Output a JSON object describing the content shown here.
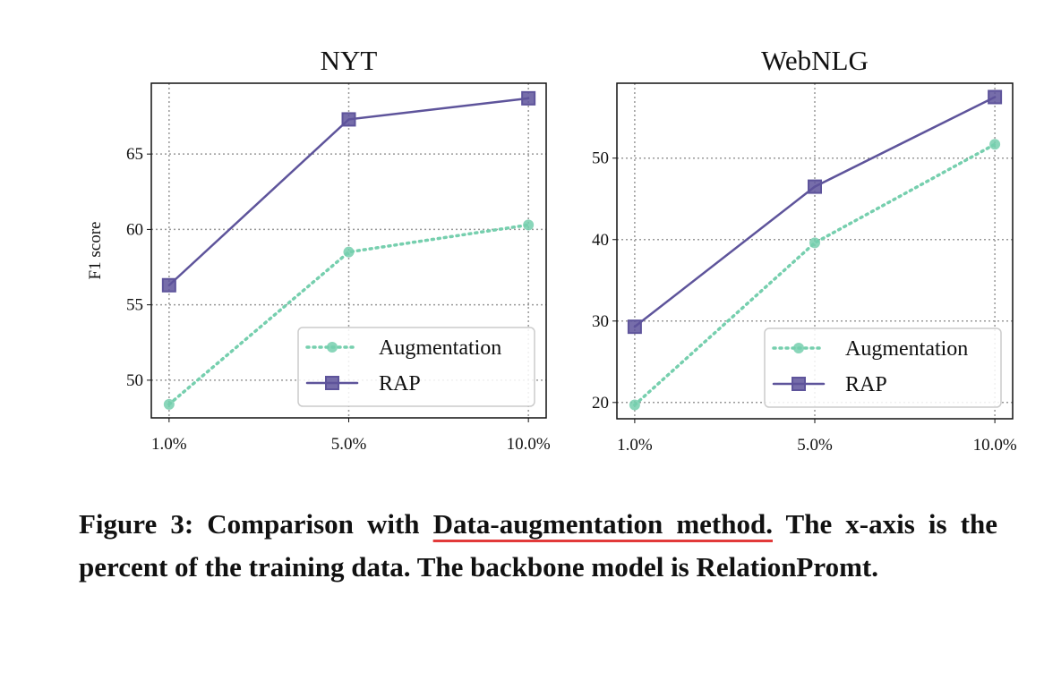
{
  "chart_data": [
    {
      "type": "line",
      "title": "NYT",
      "y_label": "F1 score",
      "categories": [
        "1.0%",
        "5.0%",
        "10.0%"
      ],
      "series": [
        {
          "name": "Augmentation",
          "color": "#76cfae",
          "linestyle": "dotted",
          "marker": "circle",
          "values": [
            48.4,
            58.5,
            60.3
          ]
        },
        {
          "name": "RAP",
          "color": "#5e549b",
          "linestyle": "solid",
          "marker": "square",
          "values": [
            56.3,
            67.3,
            68.7
          ]
        }
      ],
      "ylim": [
        47.5,
        69.7
      ],
      "yticks": [
        50,
        55,
        60,
        65
      ],
      "grid": true,
      "legend": "lower right"
    },
    {
      "type": "line",
      "title": "WebNLG",
      "categories": [
        "1.0%",
        "5.0%",
        "10.0%"
      ],
      "series": [
        {
          "name": "Augmentation",
          "color": "#76cfae",
          "linestyle": "dotted",
          "marker": "circle",
          "values": [
            19.7,
            39.6,
            51.7
          ]
        },
        {
          "name": "RAP",
          "color": "#5e549b",
          "linestyle": "solid",
          "marker": "square",
          "values": [
            29.3,
            46.5,
            57.5
          ]
        }
      ],
      "ylim": [
        18.0,
        59.2
      ],
      "yticks": [
        20,
        30,
        40,
        50
      ],
      "grid": true,
      "legend": "lower right"
    }
  ],
  "caption": {
    "before": "Figure 3: Comparison with ",
    "underlined": "Data-augmentation method.",
    "after": " The x-axis is the percent of the training data. The backbone model is RelationPromt."
  }
}
